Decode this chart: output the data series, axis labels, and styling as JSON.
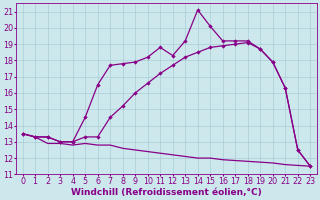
{
  "background_color": "#cde8ec",
  "grid_color": "#aacdd4",
  "line_color": "#880088",
  "marker": "D",
  "marker_size": 2.2,
  "line_width": 0.9,
  "xlim": [
    -0.5,
    23.5
  ],
  "ylim": [
    11,
    21.5
  ],
  "xlabel": "Windchill (Refroidissement éolien,°C)",
  "xlabel_fontsize": 6.5,
  "xtick_labels": [
    "0",
    "1",
    "2",
    "3",
    "4",
    "5",
    "6",
    "7",
    "8",
    "9",
    "10",
    "11",
    "12",
    "13",
    "14",
    "15",
    "16",
    "17",
    "18",
    "19",
    "20",
    "21",
    "22",
    "23"
  ],
  "xticks": [
    0,
    1,
    2,
    3,
    4,
    5,
    6,
    7,
    8,
    9,
    10,
    11,
    12,
    13,
    14,
    15,
    16,
    17,
    18,
    19,
    20,
    21,
    22,
    23
  ],
  "yticks": [
    11,
    12,
    13,
    14,
    15,
    16,
    17,
    18,
    19,
    20,
    21
  ],
  "tick_fontsize": 5.8,
  "series1_x": [
    0,
    1,
    2,
    3,
    4,
    5,
    6,
    7,
    8,
    9,
    10,
    11,
    12,
    13,
    14,
    15,
    16,
    17,
    18,
    19,
    20,
    21,
    22,
    23
  ],
  "series1_y": [
    13.5,
    13.3,
    12.9,
    12.9,
    12.8,
    12.9,
    12.8,
    12.8,
    12.6,
    12.5,
    12.4,
    12.3,
    12.2,
    12.1,
    12.0,
    12.0,
    11.9,
    11.85,
    11.8,
    11.75,
    11.7,
    11.6,
    11.55,
    11.5
  ],
  "series2_x": [
    0,
    1,
    2,
    3,
    4,
    5,
    6,
    7,
    8,
    9,
    10,
    11,
    12,
    13,
    14,
    15,
    16,
    17,
    18,
    19,
    20,
    21,
    22,
    23
  ],
  "series2_y": [
    13.5,
    13.3,
    13.3,
    13.0,
    13.0,
    14.5,
    16.5,
    17.7,
    17.8,
    17.9,
    18.2,
    18.8,
    18.3,
    19.2,
    21.1,
    20.1,
    19.2,
    19.2,
    19.2,
    18.7,
    17.9,
    16.3,
    12.5,
    11.5
  ],
  "series3_x": [
    0,
    1,
    2,
    3,
    4,
    5,
    6,
    7,
    8,
    9,
    10,
    11,
    12,
    13,
    14,
    15,
    16,
    17,
    18,
    19,
    20,
    21,
    22,
    23
  ],
  "series3_y": [
    13.5,
    13.3,
    13.3,
    13.0,
    13.0,
    13.3,
    13.3,
    14.5,
    15.2,
    16.0,
    16.6,
    17.2,
    17.7,
    18.2,
    18.5,
    18.8,
    18.9,
    19.0,
    19.1,
    18.7,
    17.9,
    16.3,
    12.5,
    11.5
  ]
}
